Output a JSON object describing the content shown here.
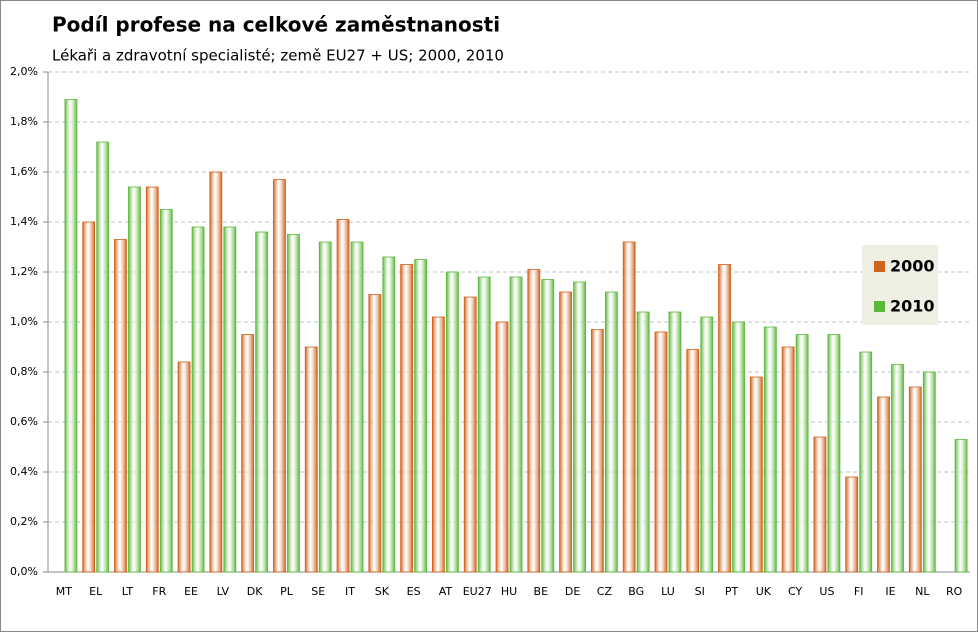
{
  "chart_data": {
    "type": "bar",
    "title": "Podíl profese na celkové zaměstnanosti",
    "subtitle": "Lékaři a zdravotní specialisté; země EU27 + US; 2000, 2010",
    "categories": [
      "MT",
      "EL",
      "LT",
      "FR",
      "EE",
      "LV",
      "DK",
      "PL",
      "SE",
      "IT",
      "SK",
      "ES",
      "AT",
      "EU27",
      "HU",
      "BE",
      "DE",
      "CZ",
      "BG",
      "LU",
      "SI",
      "PT",
      "UK",
      "CY",
      "US",
      "FI",
      "IE",
      "NL",
      "RO"
    ],
    "series": [
      {
        "name": "2000",
        "color": "#d0621a",
        "values": [
          null,
          1.4,
          1.33,
          1.54,
          0.84,
          1.6,
          0.95,
          1.57,
          0.9,
          1.41,
          1.11,
          1.23,
          1.02,
          1.1,
          1.0,
          1.21,
          1.12,
          0.97,
          1.32,
          0.96,
          0.89,
          1.23,
          0.78,
          0.9,
          0.54,
          0.38,
          0.7,
          0.74,
          null
        ]
      },
      {
        "name": "2010",
        "color": "#5cb83a",
        "values": [
          1.89,
          1.72,
          1.54,
          1.45,
          1.38,
          1.38,
          1.36,
          1.35,
          1.32,
          1.32,
          1.26,
          1.25,
          1.2,
          1.18,
          1.18,
          1.17,
          1.16,
          1.12,
          1.04,
          1.04,
          1.02,
          1.0,
          0.98,
          0.95,
          0.95,
          0.88,
          0.83,
          0.8,
          0.53
        ]
      }
    ],
    "ylim": [
      0,
      2.0
    ],
    "yticks": [
      {
        "value": 0,
        "label": "0,0%"
      },
      {
        "value": 0.2,
        "label": "0,2%"
      },
      {
        "value": 0.4,
        "label": "0,4%"
      },
      {
        "value": 0.6,
        "label": "0,6%"
      },
      {
        "value": 0.8,
        "label": "0,8%"
      },
      {
        "value": 1.0,
        "label": "1,0%"
      },
      {
        "value": 1.2,
        "label": "1,2%"
      },
      {
        "value": 1.4,
        "label": "1,4%"
      },
      {
        "value": 1.6,
        "label": "1,6%"
      },
      {
        "value": 1.8,
        "label": "1,8%"
      },
      {
        "value": 2.0,
        "label": "2,0%"
      }
    ],
    "grid": true,
    "legend": "right"
  }
}
